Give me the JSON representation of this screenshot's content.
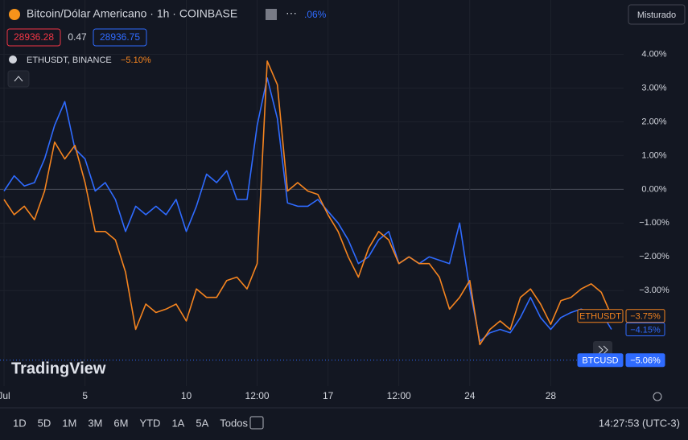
{
  "header": {
    "symbol": "Bitcoin/Dólar Americano · 1h · COINBASE",
    "change_fragment": ".06%",
    "bid": "28936.28",
    "spread": "0.47",
    "ask": "28936.75",
    "compare_symbol": "ETHUSDT, BINANCE",
    "compare_change": "−5.10%",
    "mode": "Misturado",
    "logo": "TradingView"
  },
  "toolbar": {
    "ranges": [
      "1D",
      "5D",
      "1M",
      "3M",
      "6M",
      "YTD",
      "1A",
      "5A",
      "Todos"
    ],
    "clock": "14:27:53 (UTC-3)"
  },
  "chart_data": {
    "type": "line",
    "grid": true,
    "x": [
      1,
      1.5,
      2,
      2.5,
      3,
      3.5,
      4,
      4.5,
      5,
      5.5,
      6,
      6.5,
      7,
      7.5,
      8,
      8.5,
      9,
      9.5,
      10,
      10.5,
      11,
      11.5,
      12,
      12.5,
      13,
      13.5,
      14,
      14.5,
      15,
      15.5,
      16,
      16.5,
      17,
      17.5,
      18,
      18.5,
      19,
      19.5,
      20,
      20.5,
      21,
      21.5,
      22,
      22.5,
      23,
      23.5,
      24,
      24.5,
      25,
      25.5,
      26,
      26.5,
      27,
      27.5,
      28,
      28.5,
      29,
      29.5,
      30,
      30.5,
      31
    ],
    "series": [
      {
        "name": "BTCUSD",
        "color": "#2f6bff",
        "values": [
          -0.05,
          0.4,
          0.1,
          0.2,
          0.9,
          1.9,
          2.6,
          1.2,
          0.9,
          -0.05,
          0.2,
          -0.3,
          -1.25,
          -0.5,
          -0.75,
          -0.5,
          -0.75,
          -0.3,
          -1.25,
          -0.5,
          0.45,
          0.2,
          0.55,
          -0.3,
          -0.3,
          1.9,
          3.3,
          2.1,
          -0.4,
          -0.5,
          -0.5,
          -0.3,
          -0.65,
          -1.0,
          -1.5,
          -2.2,
          -2.0,
          -1.5,
          -1.25,
          -2.2,
          -2.0,
          -2.2,
          -2.0,
          -2.1,
          -2.2,
          -1.0,
          -2.95,
          -4.5,
          -4.25,
          -4.15,
          -4.25,
          -3.8,
          -3.2,
          -3.8,
          -4.15,
          -3.8,
          -3.65,
          -3.55,
          -3.65,
          -3.65,
          -4.15
        ]
      },
      {
        "name": "ETHUSDT",
        "color": "#f5841f",
        "values": [
          -0.3,
          -0.75,
          -0.5,
          -0.9,
          -0.05,
          1.4,
          0.9,
          1.3,
          0.2,
          -1.25,
          -1.25,
          -1.5,
          -2.45,
          -4.15,
          -3.4,
          -3.65,
          -3.55,
          -3.4,
          -3.9,
          -2.95,
          -3.2,
          -3.2,
          -2.7,
          -2.6,
          -2.95,
          -2.2,
          3.8,
          3.1,
          -0.05,
          0.2,
          -0.05,
          -0.15,
          -0.75,
          -1.25,
          -2.0,
          -2.6,
          -1.75,
          -1.25,
          -1.5,
          -2.2,
          -2.0,
          -2.2,
          -2.2,
          -2.6,
          -3.55,
          -3.2,
          -2.7,
          -4.6,
          -4.15,
          -3.9,
          -4.15,
          -3.2,
          -2.95,
          -3.4,
          -4.0,
          -3.3,
          -3.2,
          -2.95,
          -2.8,
          -3.05,
          -3.75
        ]
      }
    ],
    "xlim": [
      0.8,
      31.6
    ],
    "xticks": [
      {
        "value": 1,
        "label": "Jul"
      },
      5,
      10,
      {
        "value": 13.5,
        "label": "12:00"
      },
      17,
      {
        "value": 20.5,
        "label": "12:00"
      },
      24,
      28
    ],
    "ylim": [
      -5.83,
      5.61
    ],
    "yticks": [
      {
        "value": 4,
        "label": "4.00%"
      },
      {
        "value": 3,
        "label": "3.00%"
      },
      {
        "value": 2,
        "label": "2.00%"
      },
      {
        "value": 1,
        "label": "1.00%"
      },
      {
        "value": 0,
        "label": "0.00%"
      },
      {
        "value": -1,
        "label": "−1.00%"
      },
      {
        "value": -2,
        "label": "−2.00%"
      },
      {
        "value": -3,
        "label": "−3.00%"
      }
    ],
    "price_labels": [
      {
        "name": "ETHUSDT",
        "value": -3.75,
        "label": "−3.75%",
        "color": "#f5841f"
      },
      {
        "value": -4.15,
        "label": "−4.15%",
        "color": "#2f6bff"
      },
      {
        "name": "BTCUSD",
        "value": -5.06,
        "label": "−5.06%",
        "color": "#2f6bff"
      }
    ]
  }
}
